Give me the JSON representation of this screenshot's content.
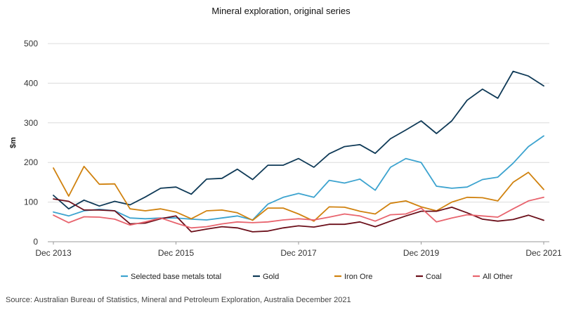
{
  "chart_data": {
    "type": "line",
    "title": "Mineral exploration, original series",
    "ylabel": "$m",
    "xlabel": "",
    "ylim": [
      0,
      500
    ],
    "yticks": [
      0,
      100,
      200,
      300,
      400,
      500
    ],
    "x": [
      "2013-12",
      "2014-03",
      "2014-06",
      "2014-09",
      "2014-12",
      "2015-03",
      "2015-06",
      "2015-09",
      "2015-12",
      "2016-03",
      "2016-06",
      "2016-09",
      "2016-12",
      "2017-03",
      "2017-06",
      "2017-09",
      "2017-12",
      "2018-03",
      "2018-06",
      "2018-09",
      "2018-12",
      "2019-03",
      "2019-06",
      "2019-09",
      "2019-12",
      "2020-03",
      "2020-06",
      "2020-09",
      "2020-12",
      "2021-03",
      "2021-06",
      "2021-09",
      "2021-12"
    ],
    "xtick_labels": [
      {
        "x": "2013-12",
        "label": "Dec 2013"
      },
      {
        "x": "2015-12",
        "label": "Dec 2015"
      },
      {
        "x": "2017-12",
        "label": "Dec 2017"
      },
      {
        "x": "2019-12",
        "label": "Dec 2019"
      },
      {
        "x": "2021-12",
        "label": "Dec 2021"
      }
    ],
    "grid": "horizontal",
    "legend_position": "bottom",
    "series": [
      {
        "name": "Selected base metals total",
        "color": "#3ca3cf",
        "values": [
          75,
          65,
          78,
          82,
          78,
          60,
          58,
          60,
          60,
          57,
          55,
          60,
          65,
          55,
          95,
          112,
          122,
          112,
          155,
          148,
          158,
          130,
          188,
          210,
          200,
          140,
          135,
          138,
          157,
          163,
          198,
          240,
          267
        ]
      },
      {
        "name": "Gold",
        "color": "#0f3a57",
        "values": [
          117,
          83,
          105,
          90,
          102,
          93,
          113,
          135,
          138,
          120,
          158,
          160,
          183,
          157,
          193,
          193,
          210,
          188,
          222,
          240,
          245,
          223,
          260,
          282,
          305,
          273,
          305,
          357,
          385,
          362,
          430,
          418,
          393
        ]
      },
      {
        "name": "Iron Ore",
        "color": "#d0820f",
        "values": [
          186,
          115,
          190,
          145,
          146,
          83,
          78,
          83,
          75,
          58,
          78,
          80,
          73,
          54,
          85,
          85,
          70,
          52,
          88,
          87,
          77,
          70,
          97,
          103,
          88,
          78,
          100,
          112,
          111,
          103,
          150,
          175,
          132
        ]
      },
      {
        "name": "Coal",
        "color": "#6b0f1a",
        "values": [
          108,
          102,
          80,
          80,
          78,
          45,
          47,
          58,
          65,
          25,
          32,
          38,
          35,
          25,
          27,
          35,
          40,
          37,
          44,
          44,
          50,
          38,
          52,
          65,
          77,
          77,
          87,
          73,
          57,
          52,
          56,
          67,
          54
        ]
      },
      {
        "name": "All Other",
        "color": "#e8646e",
        "values": [
          67,
          48,
          63,
          62,
          57,
          42,
          50,
          60,
          47,
          35,
          38,
          45,
          50,
          48,
          50,
          55,
          58,
          55,
          62,
          70,
          65,
          52,
          68,
          70,
          85,
          50,
          60,
          68,
          65,
          62,
          83,
          103,
          112
        ]
      }
    ]
  },
  "source": "Source: Australian Bureau of Statistics, Mineral and Petroleum Exploration, Australia December 2021"
}
